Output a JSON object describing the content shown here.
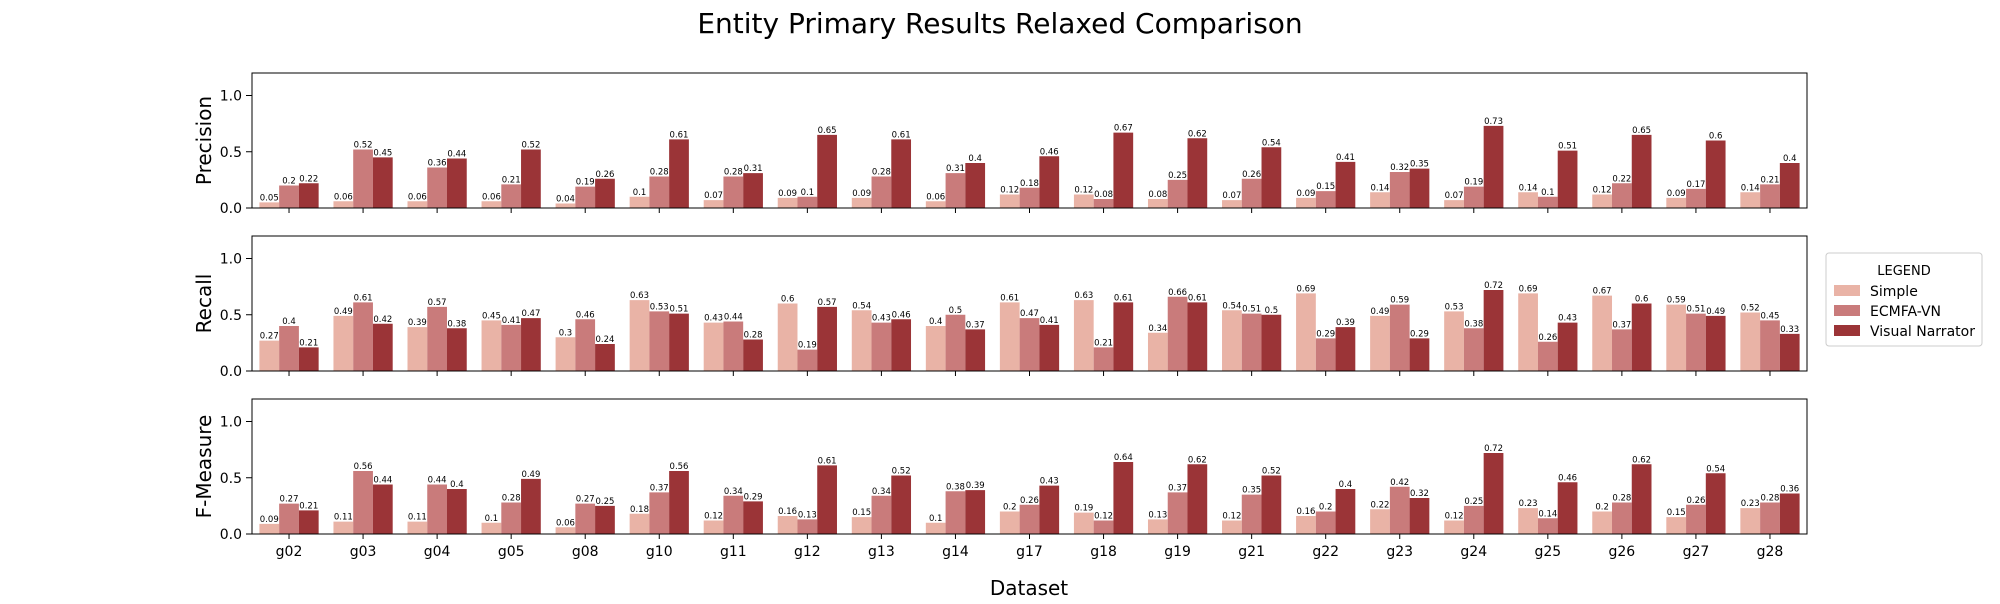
{
  "chart_data": {
    "type": "bar",
    "title": "Entity Primary Results Relaxed Comparison",
    "xlabel": "Dataset",
    "categories": [
      "g02",
      "g03",
      "g04",
      "g05",
      "g08",
      "g10",
      "g11",
      "g12",
      "g13",
      "g14",
      "g17",
      "g18",
      "g19",
      "g21",
      "g22",
      "g23",
      "g24",
      "g25",
      "g26",
      "g27",
      "g28"
    ],
    "ylim": [
      0,
      1.2
    ],
    "yticks": [
      "0.0",
      "0.5",
      "1.0"
    ],
    "legend": {
      "title": "LEGEND",
      "placement": "right",
      "entries": [
        "Simple",
        "ECMFA-VN",
        "Visual Narrator"
      ]
    },
    "colors": {
      "Simple": "#e9b3a6",
      "ECMFA-VN": "#c97b7b",
      "Visual Narrator": "#9b3437"
    },
    "panels": [
      {
        "ylabel": "Precision",
        "series": [
          {
            "name": "Simple",
            "values": [
              0.05,
              0.06,
              0.06,
              0.06,
              0.04,
              0.1,
              0.07,
              0.09,
              0.09,
              0.06,
              0.12,
              0.12,
              0.08,
              0.07,
              0.09,
              0.14,
              0.07,
              0.14,
              0.12,
              0.09,
              0.14
            ]
          },
          {
            "name": "ECMFA-VN",
            "values": [
              0.2,
              0.52,
              0.36,
              0.21,
              0.19,
              0.28,
              0.28,
              0.1,
              0.28,
              0.31,
              0.18,
              0.08,
              0.25,
              0.26,
              0.15,
              0.32,
              0.19,
              0.1,
              0.22,
              0.17,
              0.21
            ]
          },
          {
            "name": "Visual Narrator",
            "values": [
              0.22,
              0.45,
              0.44,
              0.52,
              0.26,
              0.61,
              0.31,
              0.65,
              0.61,
              0.4,
              0.46,
              0.67,
              0.62,
              0.54,
              0.41,
              0.35,
              0.73,
              0.51,
              0.65,
              0.6,
              0.4
            ]
          }
        ]
      },
      {
        "ylabel": "Recall",
        "series": [
          {
            "name": "Simple",
            "values": [
              0.27,
              0.49,
              0.39,
              0.45,
              0.3,
              0.63,
              0.43,
              0.6,
              0.54,
              0.4,
              0.61,
              0.63,
              0.34,
              0.54,
              0.69,
              0.49,
              0.53,
              0.69,
              0.67,
              0.59,
              0.52
            ]
          },
          {
            "name": "ECMFA-VN",
            "values": [
              0.4,
              0.61,
              0.57,
              0.41,
              0.46,
              0.53,
              0.44,
              0.19,
              0.43,
              0.5,
              0.47,
              0.21,
              0.66,
              0.51,
              0.29,
              0.59,
              0.38,
              0.26,
              0.37,
              0.51,
              0.45
            ]
          },
          {
            "name": "Visual Narrator",
            "values": [
              0.21,
              0.42,
              0.38,
              0.47,
              0.24,
              0.51,
              0.28,
              0.57,
              0.46,
              0.37,
              0.41,
              0.61,
              0.61,
              0.5,
              0.39,
              0.29,
              0.72,
              0.43,
              0.6,
              0.49,
              0.33
            ]
          }
        ]
      },
      {
        "ylabel": "F-Measure",
        "series": [
          {
            "name": "Simple",
            "values": [
              0.09,
              0.11,
              0.11,
              0.1,
              0.06,
              0.18,
              0.12,
              0.16,
              0.15,
              0.1,
              0.2,
              0.19,
              0.13,
              0.12,
              0.16,
              0.22,
              0.12,
              0.23,
              0.2,
              0.15,
              0.23
            ]
          },
          {
            "name": "ECMFA-VN",
            "values": [
              0.27,
              0.56,
              0.44,
              0.28,
              0.27,
              0.37,
              0.34,
              0.13,
              0.34,
              0.38,
              0.26,
              0.12,
              0.37,
              0.35,
              0.2,
              0.42,
              0.25,
              0.14,
              0.28,
              0.26,
              0.28
            ]
          },
          {
            "name": "Visual Narrator",
            "values": [
              0.21,
              0.44,
              0.4,
              0.49,
              0.25,
              0.56,
              0.29,
              0.61,
              0.52,
              0.39,
              0.43,
              0.64,
              0.62,
              0.52,
              0.4,
              0.32,
              0.72,
              0.46,
              0.62,
              0.54,
              0.36
            ]
          }
        ]
      }
    ]
  }
}
